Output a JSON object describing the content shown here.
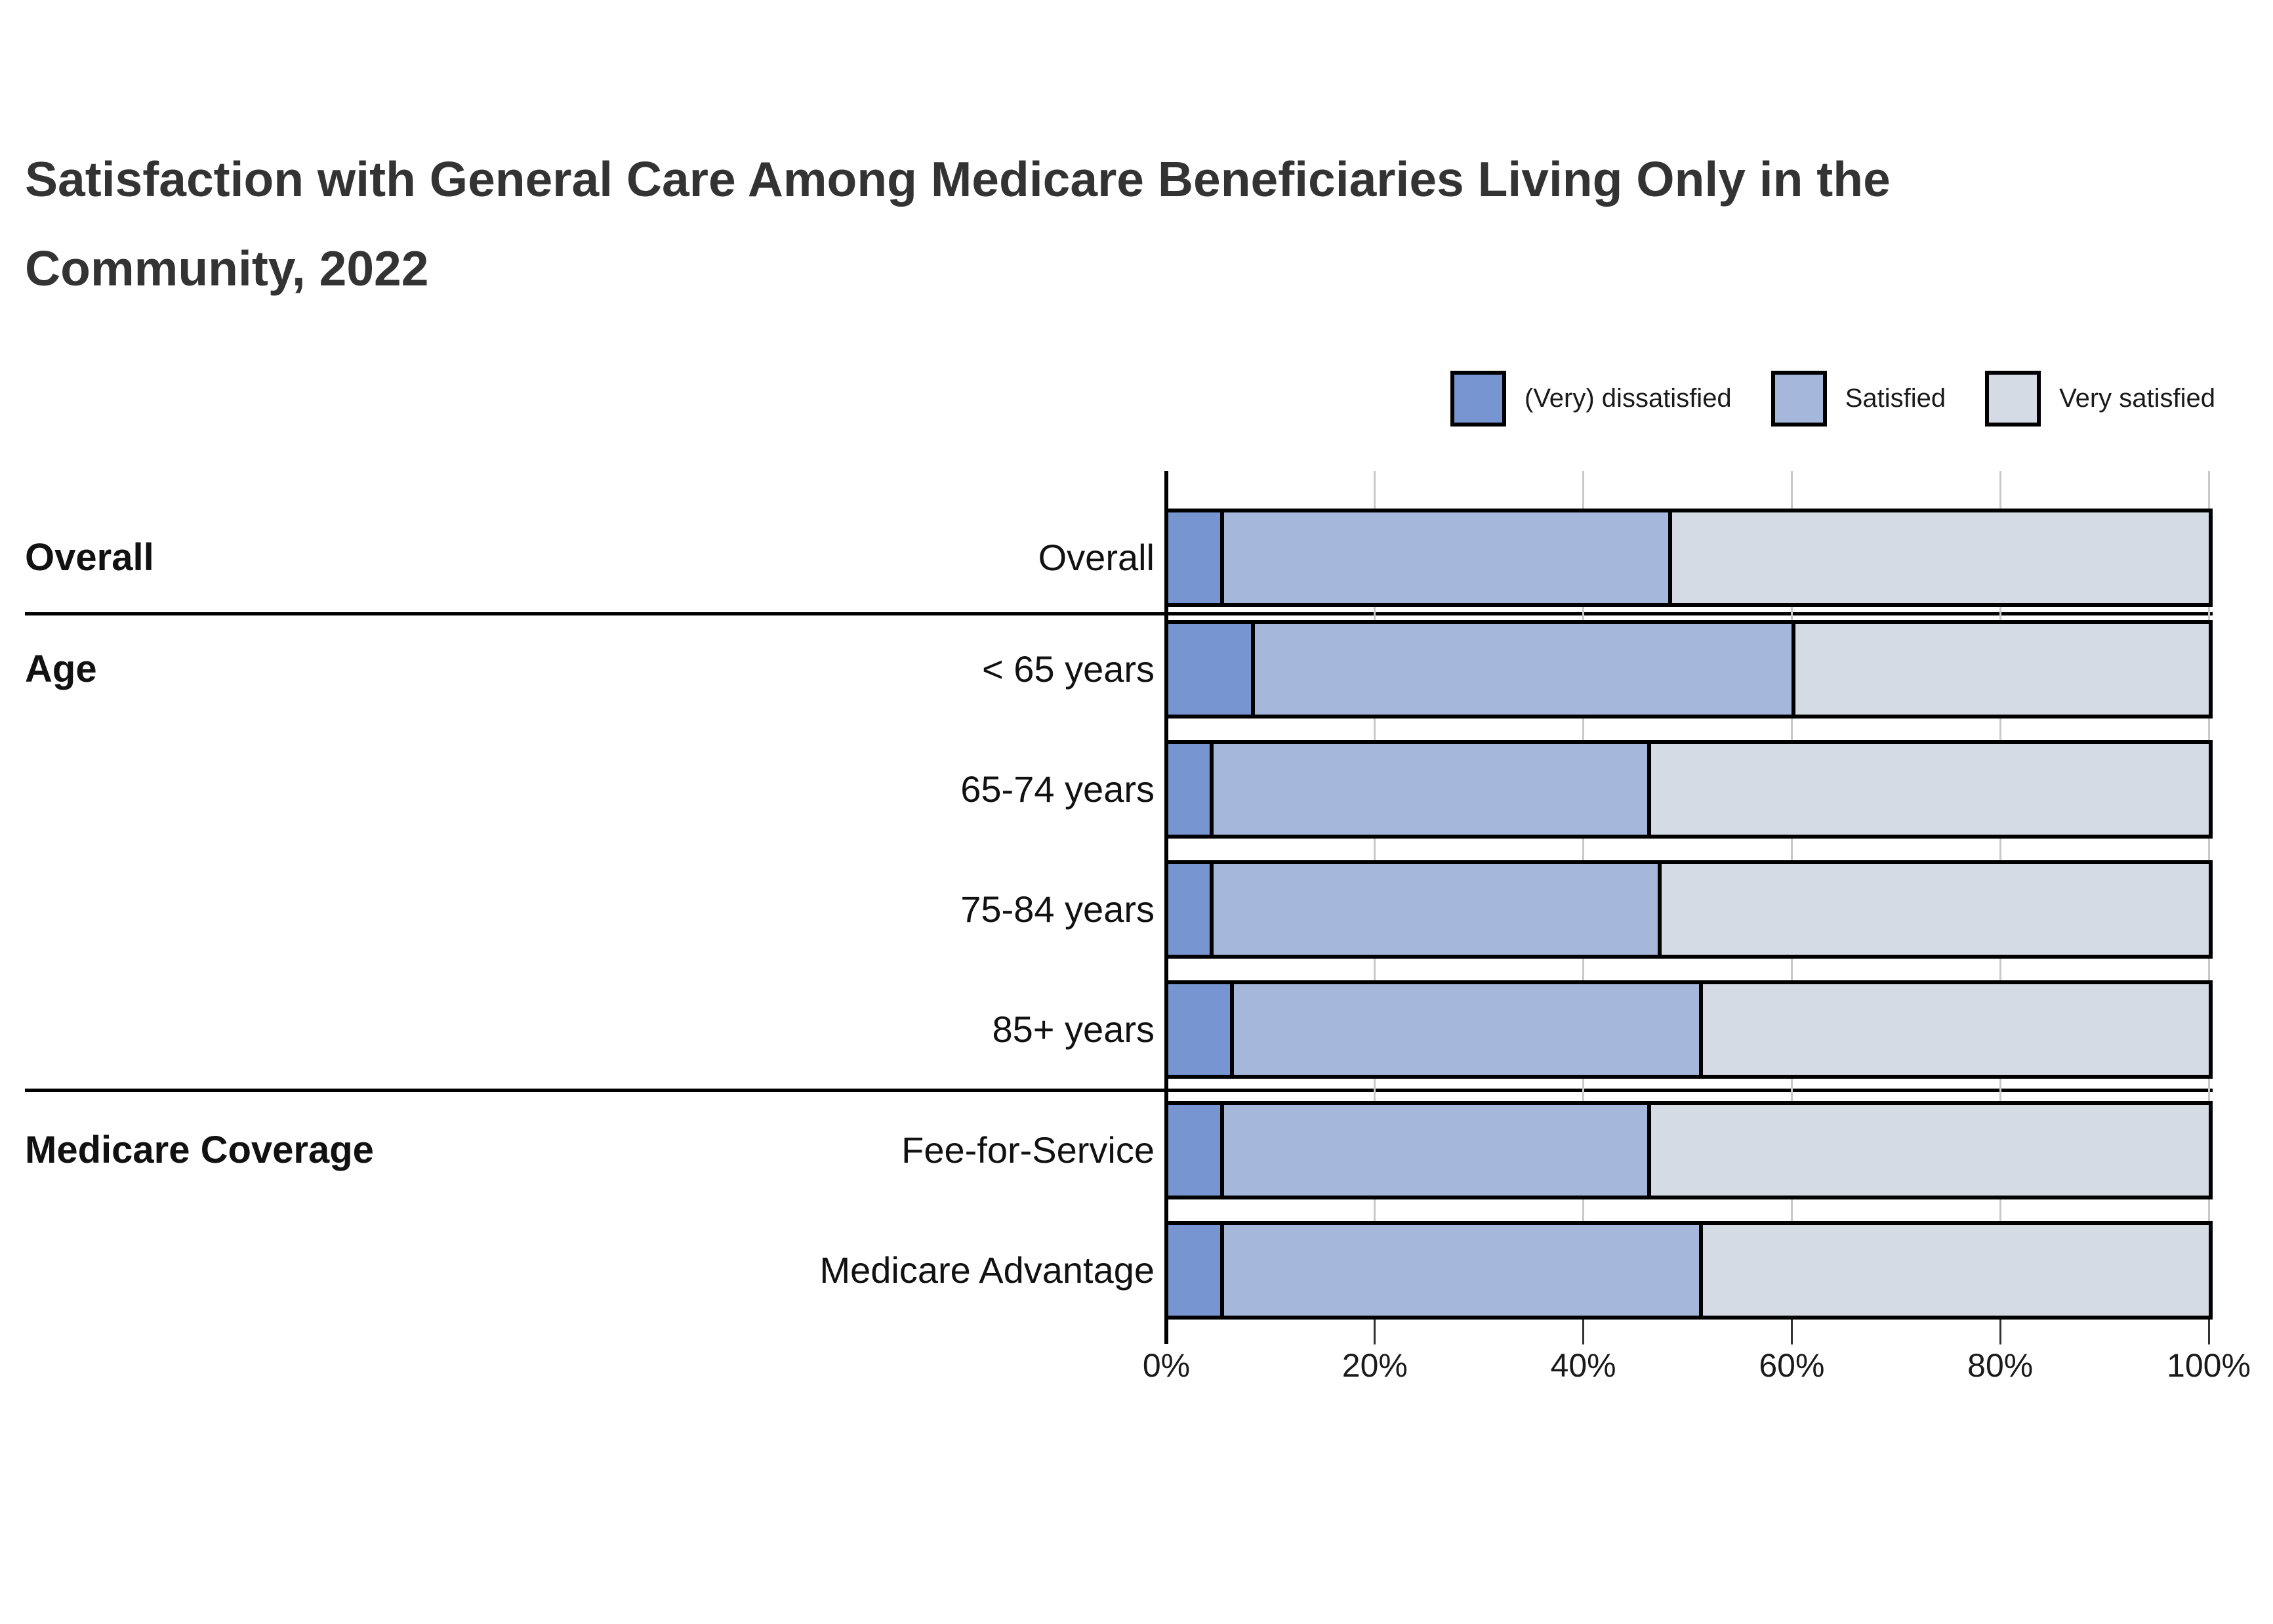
{
  "title": {
    "lines": [
      "Satisfaction with General Care Among Medicare Beneficiaries Living Only in the",
      "Community, 2022"
    ]
  },
  "legend": {
    "items": [
      {
        "label": "(Very) dissatisfied",
        "color": "#7795d1"
      },
      {
        "label": "Satisfied",
        "color": "#a5b8dc"
      },
      {
        "label": "Very satisfied",
        "color": "#d5dbe4"
      }
    ]
  },
  "row_groups": [
    {
      "label": "Overall"
    },
    {
      "label": "Age"
    },
    {
      "label": "Medicare Coverage"
    }
  ],
  "chart_data": {
    "type": "bar",
    "stacked": true,
    "horizontal": true,
    "title": "Satisfaction with General Care Among Medicare Beneficiaries Living Only in the Community, 2022",
    "categories": [
      "Overall",
      "< 65 years",
      "65-74 years",
      "75-84 years",
      "85+ years",
      "Fee-for-Service",
      "Medicare Advantage"
    ],
    "category_groups": [
      "Overall",
      "Age",
      "Age",
      "Age",
      "Age",
      "Medicare Coverage",
      "Medicare Coverage"
    ],
    "series": [
      {
        "name": "(Very) dissatisfied",
        "values": [
          5,
          8,
          4,
          4,
          6,
          5,
          5
        ]
      },
      {
        "name": "Satisfied",
        "values": [
          43,
          52,
          42,
          43,
          45,
          41,
          46
        ]
      },
      {
        "name": "Very satisfied",
        "values": [
          52,
          40,
          54,
          53,
          49,
          54,
          49
        ]
      }
    ],
    "x_ticks": [
      "0%",
      "20%",
      "40%",
      "60%",
      "80%",
      "100%"
    ],
    "xlim": [
      0,
      100
    ],
    "xlabel": "",
    "ylabel": "",
    "legend_position": "top-right",
    "grid": "vertical"
  },
  "colors": {
    "dissatisfied": "#7795d1",
    "satisfied": "#a5b8dc",
    "very_satisfied": "#d5dbe4",
    "bar_border": "#000000",
    "gridline": "#c9c9c9",
    "axis": "#000000",
    "title_text": "#333333"
  }
}
